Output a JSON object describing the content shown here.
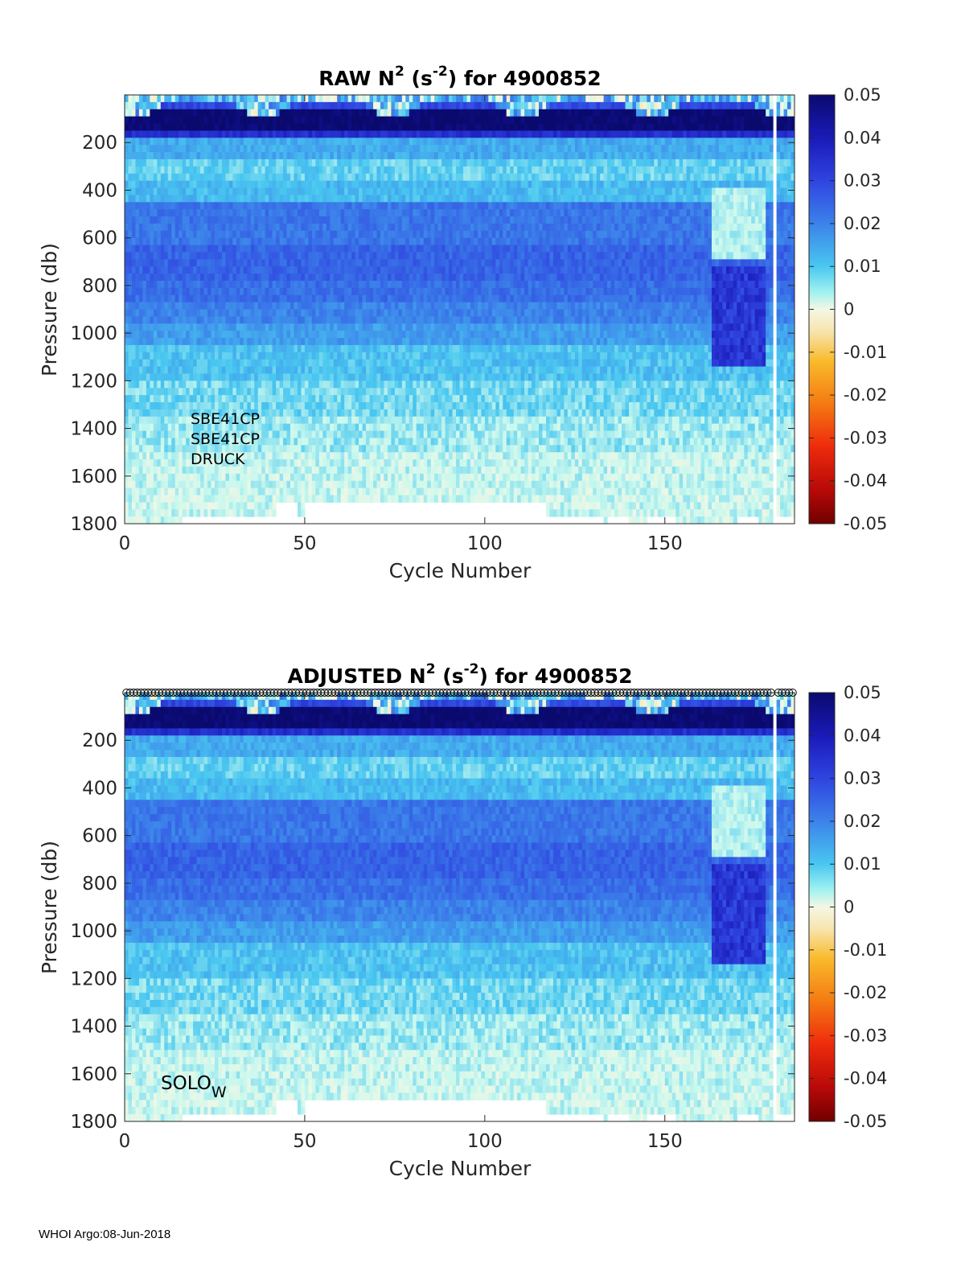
{
  "footer": "WHOI Argo:08-Jun-2018",
  "colorbar_ticks": [
    "0.05",
    "0.04",
    "0.03",
    "0.02",
    "0.01",
    "0",
    "-0.01",
    "-0.02",
    "-0.03",
    "-0.04",
    "-0.05"
  ],
  "chart_data": [
    {
      "type": "heatmap",
      "title_main": "RAW N",
      "title_sup1": "2",
      "title_mid": " (s",
      "title_sup2": "-2",
      "title_end": ") for 4900852",
      "xlabel": "Cycle Number",
      "ylabel": "Pressure (db)",
      "xlim": [
        0,
        186
      ],
      "ylim": [
        0,
        1800
      ],
      "y_reversed": true,
      "xticks": [
        "0",
        "50",
        "100",
        "150"
      ],
      "yticks": [
        "200",
        "400",
        "600",
        "800",
        "1000",
        "1200",
        "1400",
        "1600",
        "1800"
      ],
      "clim": [
        -0.05,
        0.05
      ],
      "colormap": "diverging jet: dark red (-0.05) → orange → pale cream (0) → cyan → blue → navy (0.05)",
      "sensors": [
        "SBE41CP",
        "SBE41CP",
        "DRUCK"
      ],
      "profile_rows_approx": [
        {
          "p": 50,
          "value": 0.0
        },
        {
          "p": 120,
          "value": 0.05
        },
        {
          "p": 200,
          "value": 0.015
        },
        {
          "p": 300,
          "value": 0.01
        },
        {
          "p": 400,
          "value": 0.013
        },
        {
          "p": 550,
          "value": 0.024
        },
        {
          "p": 700,
          "value": 0.025
        },
        {
          "p": 850,
          "value": 0.023
        },
        {
          "p": 1000,
          "value": 0.018
        },
        {
          "p": 1200,
          "value": 0.011
        },
        {
          "p": 1400,
          "value": 0.007
        },
        {
          "p": 1600,
          "value": 0.004
        },
        {
          "p": 1750,
          "value": 0.003
        }
      ]
    },
    {
      "type": "heatmap",
      "title_main": "ADJUSTED N",
      "title_sup1": "2",
      "title_mid": " (s",
      "title_sup2": "-2",
      "title_end": ") for 4900852",
      "xlabel": "Cycle Number",
      "ylabel": "Pressure (db)",
      "xlim": [
        0,
        186
      ],
      "ylim": [
        0,
        1800
      ],
      "y_reversed": true,
      "xticks": [
        "0",
        "50",
        "100",
        "150"
      ],
      "yticks": [
        "200",
        "400",
        "600",
        "800",
        "1000",
        "1200",
        "1400",
        "1600",
        "1800"
      ],
      "clim": [
        -0.05,
        0.05
      ],
      "float_model": "SOLO",
      "float_model_sub": "W",
      "top_markers": "open circles at each cycle along the top edge"
    }
  ]
}
